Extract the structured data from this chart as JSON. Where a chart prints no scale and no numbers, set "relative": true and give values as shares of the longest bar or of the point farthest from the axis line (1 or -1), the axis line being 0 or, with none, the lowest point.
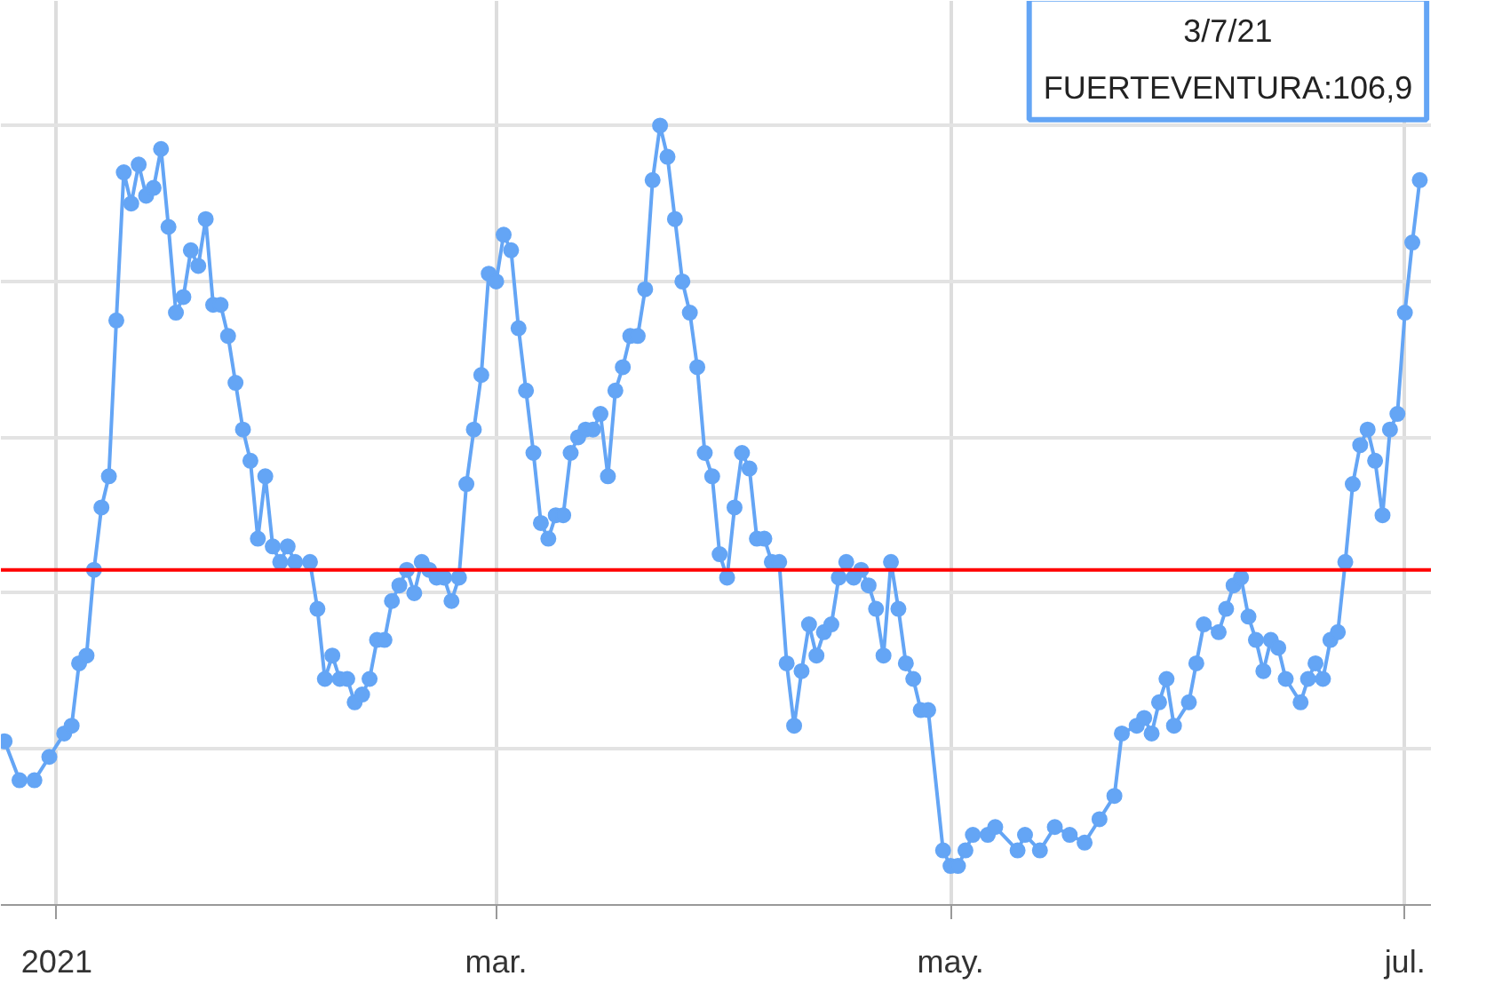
{
  "chart_data": {
    "type": "line",
    "relative": true,
    "tick_labels": "x",
    "grid": true,
    "marker": "circle",
    "line_style": "solid",
    "xlim": [
      "2020-12-24T12:00",
      "2021-07-04T12:00"
    ],
    "xticks": [
      {
        "value": "2021-01-01",
        "label": "2021"
      },
      {
        "value": "2021-03-01",
        "label": "mar."
      },
      {
        "value": "2021-05-01",
        "label": "may."
      },
      {
        "value": "2021-07-01",
        "label": "jul."
      }
    ],
    "ref_lines": [
      {
        "axis": "y",
        "value": 0.43,
        "color": "#ff0000"
      }
    ],
    "annotations": [
      {
        "text": "3/7/21\nFUERTEVENTURA:106,9",
        "x": "2021-07-03",
        "y": 0.93
      }
    ],
    "x": [
      "2020-12-25",
      "2020-12-27",
      "2020-12-29",
      "2020-12-31",
      "2021-01-02",
      "2021-01-03",
      "2021-01-04",
      "2021-01-05",
      "2021-01-06",
      "2021-01-07",
      "2021-01-08",
      "2021-01-09",
      "2021-01-10",
      "2021-01-11",
      "2021-01-12",
      "2021-01-13",
      "2021-01-14",
      "2021-01-15",
      "2021-01-16",
      "2021-01-17",
      "2021-01-18",
      "2021-01-19",
      "2021-01-20",
      "2021-01-21",
      "2021-01-22",
      "2021-01-23",
      "2021-01-24",
      "2021-01-25",
      "2021-01-26",
      "2021-01-27",
      "2021-01-28",
      "2021-01-29",
      "2021-01-30",
      "2021-01-31",
      "2021-02-01",
      "2021-02-02",
      "2021-02-04",
      "2021-02-05",
      "2021-02-06",
      "2021-02-07",
      "2021-02-08",
      "2021-02-09",
      "2021-02-10",
      "2021-02-11",
      "2021-02-12",
      "2021-02-13",
      "2021-02-14",
      "2021-02-15",
      "2021-02-16",
      "2021-02-17",
      "2021-02-18",
      "2021-02-19",
      "2021-02-20",
      "2021-02-21",
      "2021-02-22",
      "2021-02-23",
      "2021-02-24",
      "2021-02-25",
      "2021-02-26",
      "2021-02-27",
      "2021-02-28",
      "2021-03-01",
      "2021-03-02",
      "2021-03-03",
      "2021-03-04",
      "2021-03-05",
      "2021-03-06",
      "2021-03-07",
      "2021-03-08",
      "2021-03-09",
      "2021-03-10",
      "2021-03-11",
      "2021-03-12",
      "2021-03-13",
      "2021-03-14",
      "2021-03-15",
      "2021-03-16",
      "2021-03-17",
      "2021-03-18",
      "2021-03-19",
      "2021-03-20",
      "2021-03-21",
      "2021-03-22",
      "2021-03-23",
      "2021-03-24",
      "2021-03-25",
      "2021-03-26",
      "2021-03-27",
      "2021-03-28",
      "2021-03-29",
      "2021-03-30",
      "2021-03-31",
      "2021-04-01",
      "2021-04-02",
      "2021-04-03",
      "2021-04-04",
      "2021-04-05",
      "2021-04-06",
      "2021-04-07",
      "2021-04-08",
      "2021-04-09",
      "2021-04-10",
      "2021-04-11",
      "2021-04-12",
      "2021-04-13",
      "2021-04-14",
      "2021-04-15",
      "2021-04-16",
      "2021-04-17",
      "2021-04-18",
      "2021-04-19",
      "2021-04-20",
      "2021-04-21",
      "2021-04-22",
      "2021-04-23",
      "2021-04-24",
      "2021-04-25",
      "2021-04-26",
      "2021-04-27",
      "2021-04-28",
      "2021-04-30",
      "2021-05-01",
      "2021-05-02",
      "2021-05-03",
      "2021-05-04",
      "2021-05-06",
      "2021-05-07",
      "2021-05-10",
      "2021-05-11",
      "2021-05-13",
      "2021-05-15",
      "2021-05-17",
      "2021-05-19",
      "2021-05-21",
      "2021-05-23",
      "2021-05-24",
      "2021-05-26",
      "2021-05-27",
      "2021-05-28",
      "2021-05-29",
      "2021-05-30",
      "2021-05-31",
      "2021-06-02",
      "2021-06-03",
      "2021-06-04",
      "2021-06-06",
      "2021-06-07",
      "2021-06-08",
      "2021-06-09",
      "2021-06-10",
      "2021-06-11",
      "2021-06-12",
      "2021-06-13",
      "2021-06-14",
      "2021-06-15",
      "2021-06-17",
      "2021-06-18",
      "2021-06-19",
      "2021-06-20",
      "2021-06-21",
      "2021-06-22",
      "2021-06-23",
      "2021-06-24",
      "2021-06-25",
      "2021-06-26",
      "2021-06-27",
      "2021-06-28",
      "2021-06-29",
      "2021-06-30",
      "2021-07-01",
      "2021-07-02",
      "2021-07-03"
    ],
    "series": [
      {
        "color": "#64a5f5",
        "values": [
          0.21,
          0.16,
          0.16,
          0.19,
          0.22,
          0.23,
          0.31,
          0.32,
          0.43,
          0.51,
          0.55,
          0.75,
          0.94,
          0.9,
          0.95,
          0.91,
          0.92,
          0.97,
          0.87,
          0.76,
          0.78,
          0.84,
          0.82,
          0.88,
          0.77,
          0.77,
          0.73,
          0.67,
          0.61,
          0.57,
          0.47,
          0.55,
          0.46,
          0.44,
          0.46,
          0.44,
          0.44,
          0.38,
          0.29,
          0.32,
          0.29,
          0.29,
          0.26,
          0.27,
          0.29,
          0.34,
          0.34,
          0.39,
          0.41,
          0.43,
          0.4,
          0.44,
          0.43,
          0.42,
          0.42,
          0.39,
          0.42,
          0.54,
          0.61,
          0.68,
          0.81,
          0.8,
          0.86,
          0.84,
          0.74,
          0.66,
          0.58,
          0.49,
          0.47,
          0.5,
          0.5,
          0.58,
          0.6,
          0.61,
          0.61,
          0.63,
          0.55,
          0.66,
          0.69,
          0.73,
          0.73,
          0.79,
          0.93,
          1.0,
          0.96,
          0.88,
          0.8,
          0.76,
          0.69,
          0.58,
          0.55,
          0.45,
          0.42,
          0.51,
          0.58,
          0.56,
          0.47,
          0.47,
          0.44,
          0.44,
          0.31,
          0.23,
          0.3,
          0.36,
          0.32,
          0.35,
          0.36,
          0.42,
          0.44,
          0.42,
          0.43,
          0.41,
          0.38,
          0.32,
          0.44,
          0.38,
          0.31,
          0.29,
          0.25,
          0.25,
          0.07,
          0.05,
          0.05,
          0.07,
          0.09,
          0.09,
          0.1,
          0.07,
          0.09,
          0.07,
          0.1,
          0.09,
          0.08,
          0.11,
          0.14,
          0.22,
          0.23,
          0.24,
          0.22,
          0.26,
          0.29,
          0.23,
          0.26,
          0.31,
          0.36,
          0.35,
          0.38,
          0.41,
          0.42,
          0.37,
          0.34,
          0.3,
          0.34,
          0.33,
          0.29,
          0.26,
          0.29,
          0.31,
          0.29,
          0.34,
          0.35,
          0.44,
          0.54,
          0.59,
          0.61,
          0.57,
          0.5,
          0.61,
          0.63,
          0.76,
          0.85,
          0.93
        ]
      }
    ]
  }
}
